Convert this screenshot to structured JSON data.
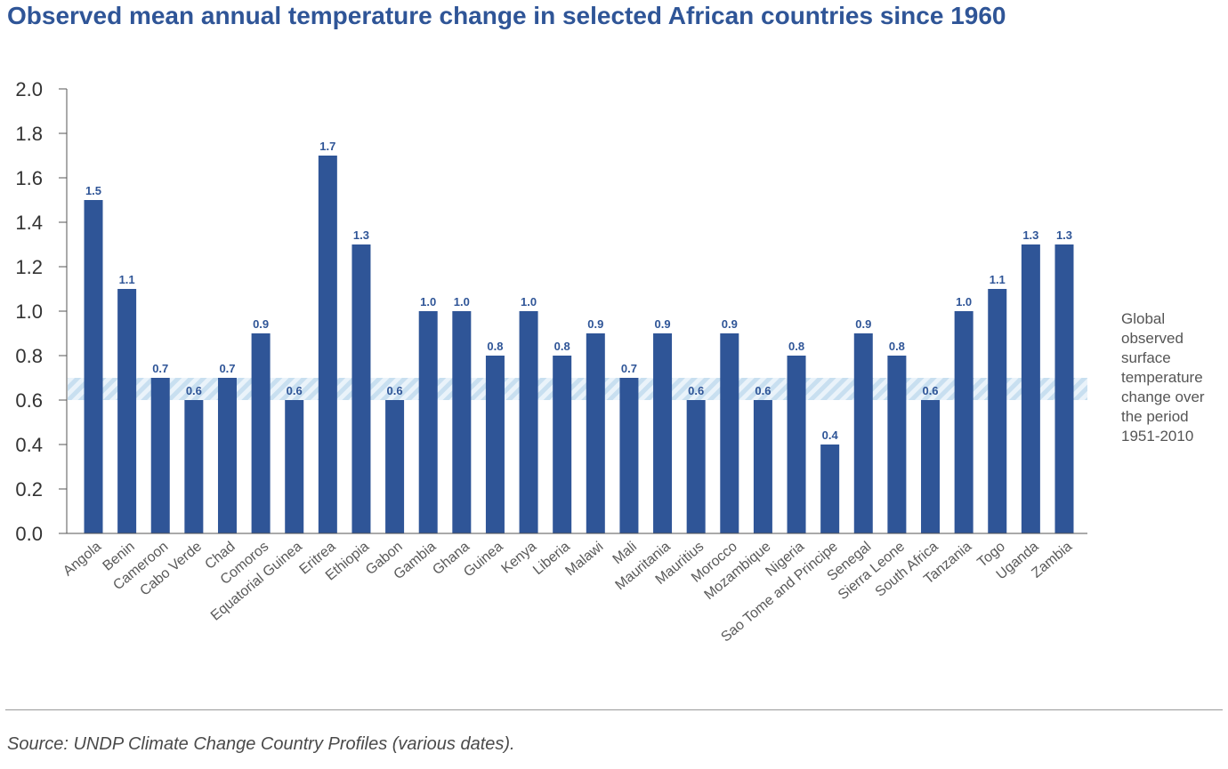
{
  "colors": {
    "bar": "#2f5597",
    "title": "#2f5597",
    "band": "#c8dff0",
    "axis": "#555555",
    "label": "#5a5a5a"
  },
  "title": "Observed mean annual temperature change in selected African countries since 1960",
  "annotation": "Global observed surface temperature change over the period 1951-2010",
  "source": "Source: UNDP  Climate Change Country Profiles (various dates).",
  "chart_data": {
    "type": "bar",
    "title": "Observed mean annual temperature change in selected African countries since 1960",
    "xlabel": "",
    "ylabel": "",
    "ylim": [
      0,
      2.0
    ],
    "yticks": [
      "0.0",
      "0.2",
      "0.4",
      "0.6",
      "0.8",
      "1.0",
      "1.2",
      "1.4",
      "1.6",
      "1.8",
      "2.0"
    ],
    "grid": false,
    "categories": [
      "Angola",
      "Benin",
      "Cameroon",
      "Cabo Verde",
      "Chad",
      "Comoros",
      "Equatorial Guinea",
      "Eritrea",
      "Ethiopia",
      "Gabon",
      "Gambia",
      "Ghana",
      "Guinea",
      "Kenya",
      "Liberia",
      "Malawi",
      "Mali",
      "Mauritania",
      "Mauritius",
      "Morocco",
      "Mozambique",
      "Nigeria",
      "Sao Tome and Principe",
      "Senegal",
      "Sierra Leone",
      "South Africa",
      "Tanzania",
      "Togo",
      "Uganda",
      "Zambia"
    ],
    "values": [
      1.5,
      1.1,
      0.7,
      0.6,
      0.7,
      0.9,
      0.6,
      1.7,
      1.3,
      0.6,
      1.0,
      1.0,
      0.8,
      1.0,
      0.8,
      0.9,
      0.7,
      0.9,
      0.6,
      0.9,
      0.6,
      0.8,
      0.4,
      0.9,
      0.8,
      0.6,
      1.0,
      1.1,
      1.3,
      1.3
    ],
    "data_labels": [
      "1.5",
      "1.1",
      "0.7",
      "0.6",
      "0.7",
      "0.9",
      "0.6",
      "1.7",
      "1.3",
      "0.6",
      "1.0",
      "1.0",
      "0.8",
      "1.0",
      "0.8",
      "0.9",
      "0.7",
      "0.9",
      "0.6",
      "0.9",
      "0.6",
      "0.8",
      "0.4",
      "0.9",
      "0.8",
      "0.6",
      "1.0",
      "1.1",
      "1.3",
      "1.3"
    ],
    "reference_band": {
      "ymin": 0.6,
      "ymax": 0.7,
      "label": "Global observed surface temperature change over the period 1951-2010"
    }
  }
}
